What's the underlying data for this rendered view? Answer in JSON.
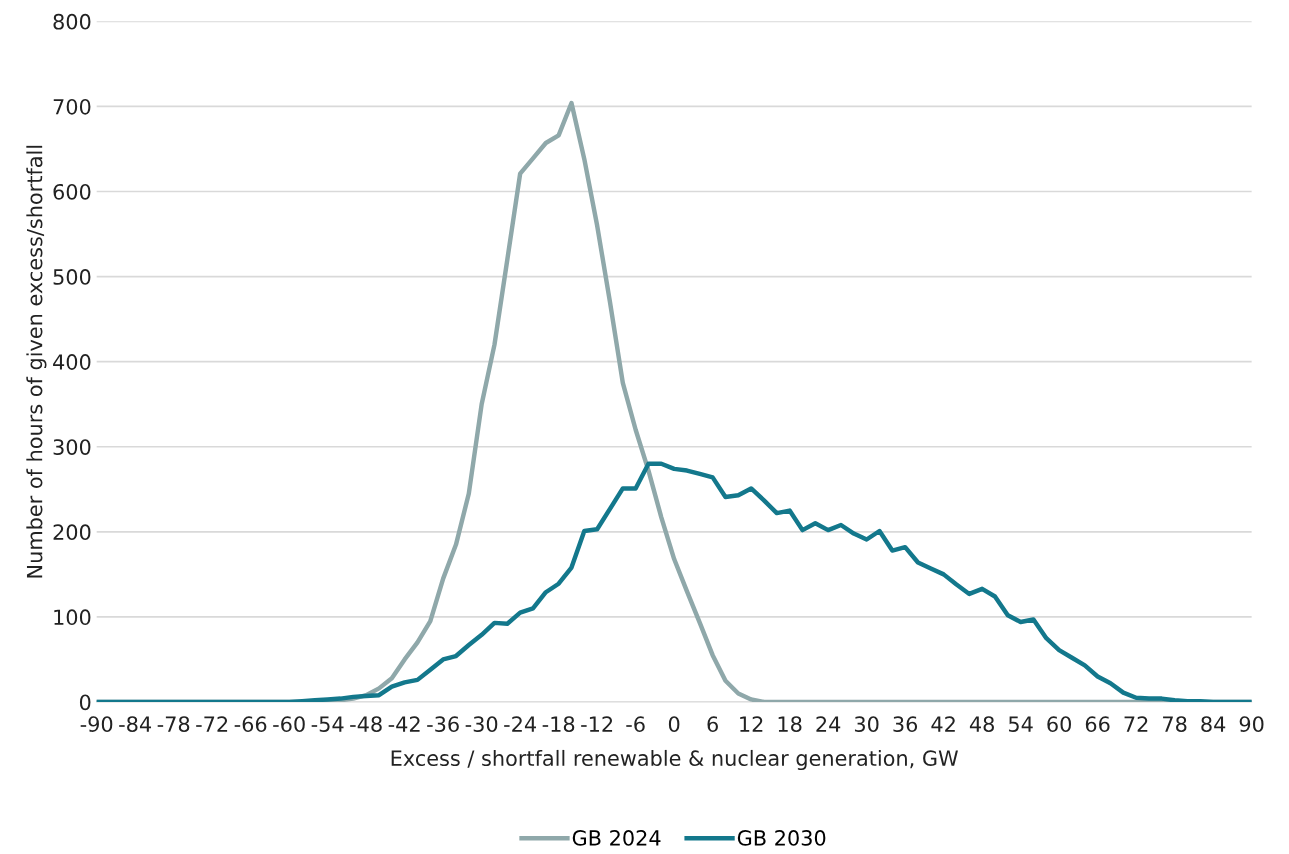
{
  "chart_data": {
    "type": "line",
    "xlabel": "Excess / shortfall renewable & nuclear generation, GW",
    "ylabel": "Number of hours of given excess/shortfall",
    "x": [
      -90,
      -88,
      -86,
      -84,
      -82,
      -80,
      -78,
      -76,
      -74,
      -72,
      -70,
      -68,
      -66,
      -64,
      -62,
      -60,
      -58,
      -56,
      -54,
      -52,
      -50,
      -48,
      -46,
      -44,
      -42,
      -40,
      -38,
      -36,
      -34,
      -32,
      -30,
      -28,
      -26,
      -24,
      -22,
      -20,
      -18,
      -16,
      -14,
      -12,
      -10,
      -8,
      -6,
      -4,
      -2,
      0,
      2,
      4,
      6,
      8,
      10,
      12,
      14,
      16,
      18,
      20,
      22,
      24,
      26,
      28,
      30,
      32,
      34,
      36,
      38,
      40,
      42,
      44,
      46,
      48,
      50,
      52,
      54,
      56,
      58,
      60,
      62,
      64,
      66,
      68,
      70,
      72,
      74,
      76,
      78,
      80,
      82,
      84,
      86,
      88,
      90
    ],
    "series": [
      {
        "name": "GB 2024",
        "color": "#8fa8aa",
        "values": [
          0,
          0,
          0,
          0,
          0,
          0,
          0,
          0,
          0,
          0,
          0,
          0,
          0,
          0,
          0,
          0,
          0,
          0,
          1,
          2,
          4,
          8,
          16,
          28,
          50,
          70,
          95,
          145,
          185,
          245,
          350,
          420,
          520,
          621,
          639,
          657,
          666,
          704,
          638,
          560,
          470,
          375,
          320,
          272,
          217,
          168,
          130,
          93,
          55,
          25,
          10,
          3,
          0,
          0,
          0,
          0,
          0,
          0,
          0,
          0,
          0,
          0,
          0,
          0,
          0,
          0,
          0,
          0,
          0,
          0,
          0,
          0,
          0,
          0,
          0,
          0,
          0,
          0,
          0,
          0,
          0,
          0,
          0,
          0,
          0,
          0,
          0,
          0,
          0,
          0,
          0
        ]
      },
      {
        "name": "GB 2030",
        "color": "#13788c",
        "values": [
          0,
          0,
          0,
          0,
          0,
          0,
          0,
          0,
          0,
          0,
          0,
          0,
          0,
          0,
          0,
          0,
          1,
          2,
          3,
          4,
          6,
          7,
          8,
          18,
          23,
          26,
          38,
          50,
          54,
          67,
          79,
          93,
          92,
          105,
          110,
          129,
          139,
          158,
          201,
          203,
          227,
          251,
          251,
          280,
          280,
          274,
          272,
          268,
          264,
          241,
          243,
          251,
          237,
          222,
          225,
          202,
          210,
          202,
          208,
          198,
          191,
          201,
          178,
          182,
          164,
          157,
          150,
          138,
          127,
          133,
          124,
          102,
          94,
          97,
          75,
          61,
          52,
          43,
          30,
          22,
          11,
          5,
          4,
          4,
          2,
          1,
          1,
          0,
          0,
          0,
          0
        ]
      }
    ],
    "xlim": [
      -90,
      90
    ],
    "xticks": [
      -90,
      -84,
      -78,
      -72,
      -66,
      -60,
      -54,
      -48,
      -42,
      -36,
      -30,
      -24,
      -18,
      -12,
      -6,
      0,
      6,
      12,
      18,
      24,
      30,
      36,
      42,
      48,
      54,
      60,
      66,
      72,
      78,
      84,
      90
    ],
    "ylim": [
      0,
      800
    ],
    "yticks": [
      0,
      100,
      200,
      300,
      400,
      500,
      600,
      700,
      800
    ],
    "grid": "y",
    "legend": "bottom",
    "marker": "none",
    "line_style": "solid"
  }
}
